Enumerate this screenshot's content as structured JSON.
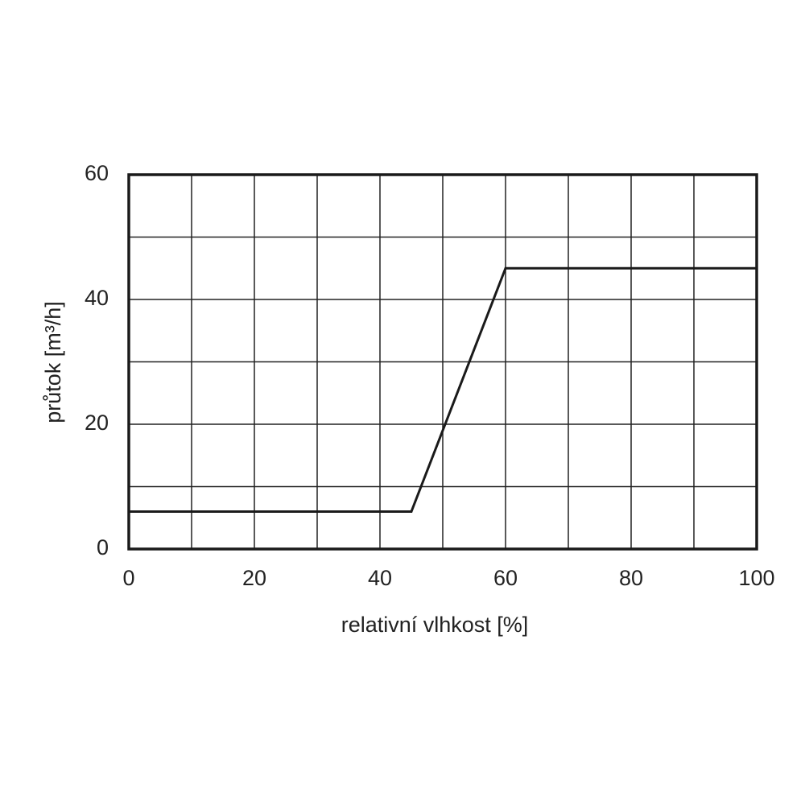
{
  "chart_data": {
    "type": "line",
    "xlabel": "relativní vlhkost [%]",
    "ylabel": "průtok [m³/h]",
    "series": [
      {
        "color": "#1a1a1a",
        "x": [
          0,
          45,
          60,
          100
        ],
        "values": [
          6,
          6,
          45,
          45
        ]
      }
    ],
    "xlim": [
      0,
      100
    ],
    "xticks": [
      0,
      20,
      40,
      60,
      80,
      100
    ],
    "ylim": [
      0,
      60
    ],
    "yticks": [
      0,
      20,
      40,
      60
    ],
    "xgrid": [
      10,
      20,
      30,
      40,
      50,
      60,
      70,
      80,
      90
    ],
    "ygrid": [
      10,
      20,
      30,
      40,
      50
    ],
    "grid": true
  }
}
